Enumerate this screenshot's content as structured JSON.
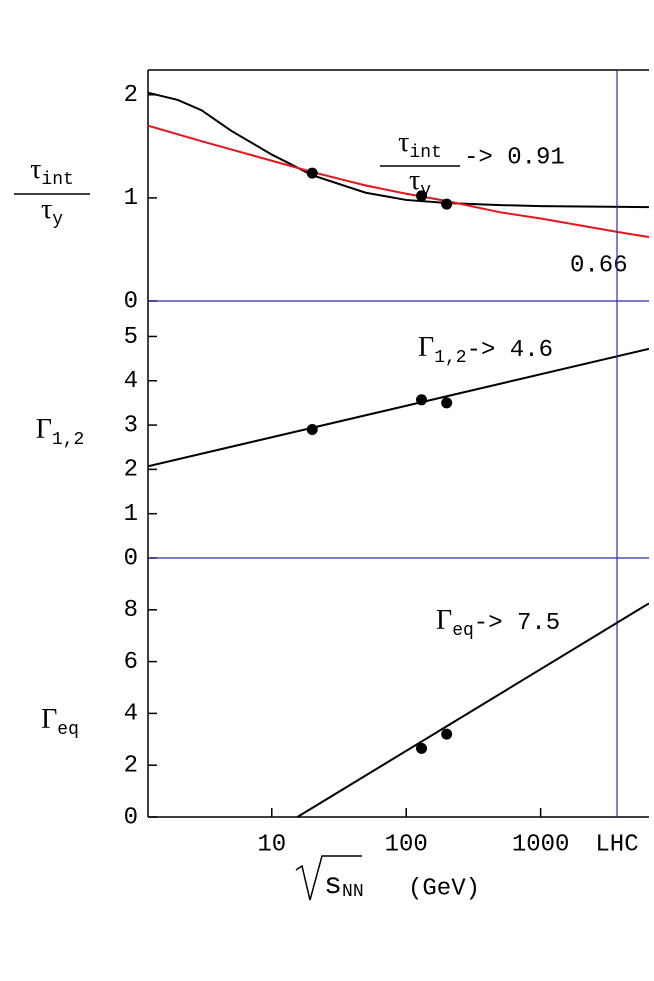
{
  "chart_data": [
    {
      "type": "line",
      "xscale": "log",
      "xlim": [
        1.2,
        6400
      ],
      "ylim": [
        0,
        2.24
      ],
      "yticks": [
        0,
        1,
        2
      ],
      "zero_line_color": "#2b2bb0",
      "ylabel": {
        "numerator": {
          "symbol": "τ",
          "sub": "int"
        },
        "denominator": {
          "symbol": "τ",
          "sub": "y"
        }
      },
      "annotations": [
        {
          "numerator": {
            "symbol": "τ",
            "sub": "int"
          },
          "denominator": {
            "symbol": "τ",
            "sub": "y"
          },
          "text": "-> 0.91"
        },
        {
          "text": "0.66"
        }
      ],
      "series": [
        {
          "style": "line",
          "color": "#000000",
          "x": [
            1.2,
            2,
            3,
            5,
            10,
            20,
            50,
            100,
            200,
            500,
            1000,
            6400
          ],
          "values": [
            2.02,
            1.95,
            1.85,
            1.65,
            1.42,
            1.22,
            1.05,
            0.98,
            0.95,
            0.93,
            0.92,
            0.91
          ]
        },
        {
          "style": "line",
          "color": "#e8141c",
          "x": [
            1.2,
            3,
            10,
            20,
            50,
            100,
            200,
            500,
            1000,
            3700,
            6400
          ],
          "values": [
            1.7,
            1.55,
            1.36,
            1.25,
            1.12,
            1.04,
            0.97,
            0.86,
            0.8,
            0.67,
            0.62
          ]
        },
        {
          "style": "points",
          "color": "#000000",
          "x": [
            20,
            130,
            200
          ],
          "values": [
            1.24,
            1.02,
            0.94
          ]
        }
      ]
    },
    {
      "type": "line",
      "xscale": "log",
      "xlim": [
        1.2,
        6400
      ],
      "ylim": [
        0,
        5.8
      ],
      "yticks": [
        0,
        1,
        2,
        3,
        4,
        5
      ],
      "zero_line_color": "#2b2bb0",
      "ylabel": {
        "symbol": "Γ",
        "sub": "1,2"
      },
      "annotations": [
        {
          "symbol": "Γ",
          "sub": "1,2",
          "text": "-> 4.6"
        }
      ],
      "series": [
        {
          "style": "line",
          "color": "#000000",
          "x": [
            1.2,
            6400
          ],
          "values": [
            2.07,
            4.72
          ]
        },
        {
          "style": "points",
          "color": "#000000",
          "x": [
            20,
            130,
            200
          ],
          "values": [
            2.9,
            3.57,
            3.5
          ]
        }
      ]
    },
    {
      "type": "line",
      "xscale": "log",
      "xlim": [
        1.2,
        6400
      ],
      "ylim": [
        0,
        10
      ],
      "yticks": [
        0,
        2,
        4,
        6,
        8
      ],
      "xticks": [
        10,
        100,
        1000,
        {
          "value": 3700,
          "label": "LHC"
        }
      ],
      "vline_color": "#2b2bb0",
      "ylabel": {
        "symbol": "Γ",
        "sub": "eq"
      },
      "xlabel": {
        "symbol": "s",
        "sub": "NN",
        "unit": "(GeV)"
      },
      "annotations": [
        {
          "symbol": "Γ",
          "sub": "eq",
          "text": "-> 7.5"
        }
      ],
      "series": [
        {
          "style": "line",
          "color": "#000000",
          "x": [
            15.5,
            6400
          ],
          "values": [
            0,
            8.25
          ]
        },
        {
          "style": "points",
          "color": "#000000",
          "x": [
            130,
            200
          ],
          "values": [
            2.65,
            3.2
          ]
        }
      ]
    }
  ]
}
